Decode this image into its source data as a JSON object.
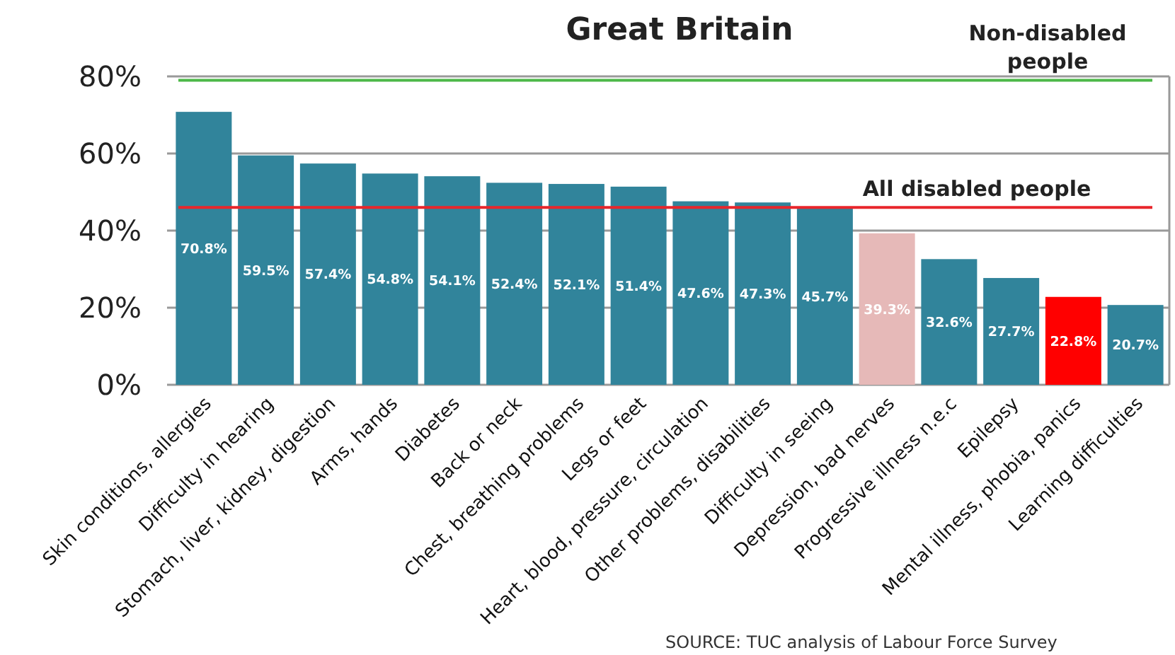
{
  "chart_data": {
    "type": "bar",
    "title": "Great Britain",
    "categories": [
      "Skin conditions, allergies",
      "Difficulty in hearing",
      "Stomach, liver, kidney, digestion",
      "Arms, hands",
      "Diabetes",
      "Back or neck",
      "Chest, breathing problems",
      "Legs or feet",
      "Heart, blood, pressure, circulation",
      "Other problems, disabilities",
      "Difficulty in seeing",
      "Depression, bad nerves",
      "Progressive illness n.e.c",
      "Epilepsy",
      "Mental illness, phobia, panics",
      "Learning difficulties"
    ],
    "values": [
      70.8,
      59.5,
      57.4,
      54.8,
      54.1,
      52.4,
      52.1,
      51.4,
      47.6,
      47.3,
      45.7,
      39.3,
      32.6,
      27.7,
      22.8,
      20.7
    ],
    "colors": [
      "#31849b",
      "#31849b",
      "#31849b",
      "#31849b",
      "#31849b",
      "#31849b",
      "#31849b",
      "#31849b",
      "#31849b",
      "#31849b",
      "#31849b",
      "#e6b9b8",
      "#31849b",
      "#31849b",
      "#ff0000",
      "#31849b"
    ],
    "value_labels": [
      "70.8%",
      "59.5%",
      "57.4%",
      "54.8%",
      "54.1%",
      "52.4%",
      "52.1%",
      "51.4%",
      "47.6%",
      "47.3%",
      "45.7%",
      "39.3%",
      "32.6%",
      "27.7%",
      "22.8%",
      "20.7%"
    ],
    "ylim": [
      0,
      80
    ],
    "yticks": [
      {
        "value": 0,
        "label": "0%"
      },
      {
        "value": 20,
        "label": "20%"
      },
      {
        "value": 40,
        "label": "40%"
      },
      {
        "value": 60,
        "label": "60%"
      },
      {
        "value": 80,
        "label": "80%"
      }
    ],
    "grid": "y",
    "ref_lines": [
      {
        "axis": "y",
        "value": 79,
        "label": "Non-disabled people",
        "color": "#4cb848"
      },
      {
        "axis": "y",
        "value": 46,
        "label": "All disabled people",
        "color": "#e8262b"
      }
    ],
    "annotations": [
      "SOURCE: TUC analysis of Labour Force Survey"
    ]
  }
}
